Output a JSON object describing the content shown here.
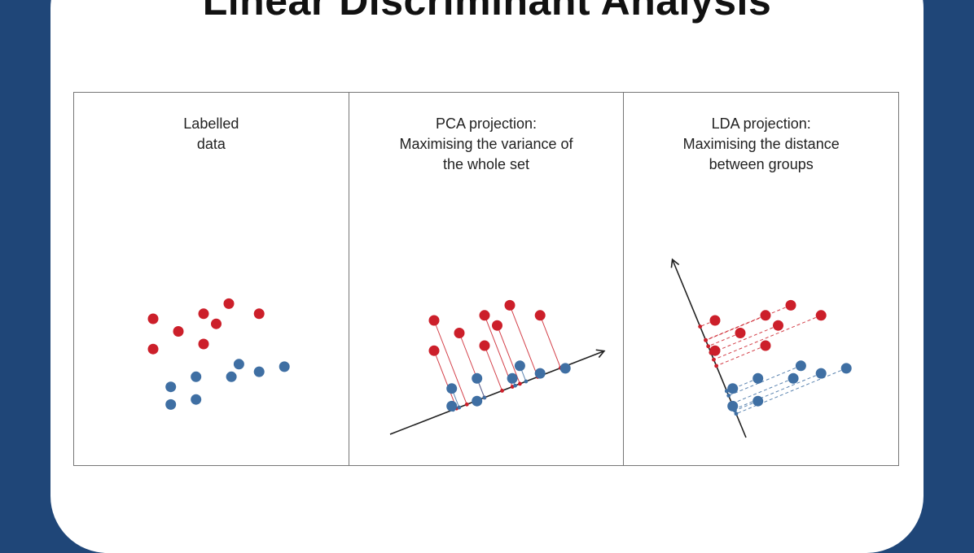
{
  "title": "Linear Discriminant Analysis",
  "panels": [
    {
      "caption": "Labelled\ndata"
    },
    {
      "caption": "PCA projection:\nMaximising the variance of\nthe whole set"
    },
    {
      "caption": "LDA projection:\nMaximising the distance\nbetween groups"
    }
  ],
  "colors": {
    "class_a": "#cc1f2a",
    "class_b": "#3f6fa3",
    "background": "#1f4678"
  },
  "points": {
    "class_a": [
      [
        -3,
        2
      ],
      [
        -2,
        1.5
      ],
      [
        -1,
        2.2
      ],
      [
        0,
        2.6
      ],
      [
        1.2,
        2.2
      ],
      [
        -0.5,
        1.8
      ],
      [
        -3,
        0.8
      ],
      [
        -1,
        1
      ]
    ],
    "class_b": [
      [
        -2.3,
        -0.7
      ],
      [
        -2.3,
        -1.4
      ],
      [
        -1.3,
        -1.2
      ],
      [
        -1.3,
        -0.3
      ],
      [
        0.1,
        -0.3
      ],
      [
        0.4,
        0.2
      ],
      [
        1.2,
        -0.1
      ],
      [
        2.2,
        0.1
      ]
    ]
  }
}
